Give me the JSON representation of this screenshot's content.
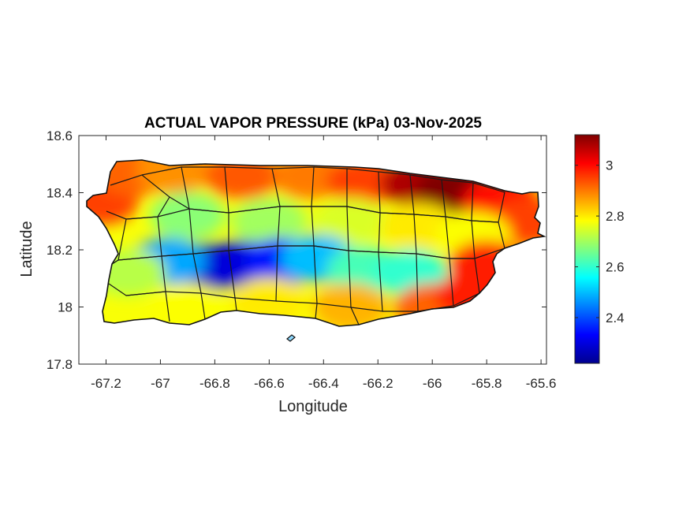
{
  "chart_data": {
    "type": "heatmap",
    "title": "ACTUAL VAPOR PRESSURE (kPa) 03-Nov-2025",
    "xlabel": "Longitude",
    "ylabel": "Latitude",
    "xlim": [
      -67.3,
      -65.58
    ],
    "ylim": [
      17.8,
      18.6
    ],
    "x_ticks": [
      -67.2,
      -67,
      -66.8,
      -66.6,
      -66.4,
      -66.2,
      -66,
      -65.8,
      -65.6
    ],
    "x_tick_labels": [
      "-67.2",
      "-67",
      "-66.8",
      "-66.6",
      "-66.4",
      "-66.2",
      "-66",
      "-65.8",
      "-65.6"
    ],
    "y_ticks": [
      17.8,
      18,
      18.2,
      18.4,
      18.6
    ],
    "y_tick_labels": [
      "17.8",
      "18",
      "18.2",
      "18.4",
      "18.6"
    ],
    "colormap": "jet",
    "colorbar": {
      "min": 2.22,
      "max": 3.12,
      "ticks": [
        2.4,
        2.6,
        2.8,
        3.0
      ],
      "tick_labels": [
        "2.4",
        "2.6",
        "2.8",
        "3"
      ],
      "location": "right"
    },
    "grid": false,
    "field_samples": [
      {
        "lon": -67.22,
        "lat": 18.37,
        "value": 2.95
      },
      {
        "lon": -67.1,
        "lat": 18.47,
        "value": 2.92
      },
      {
        "lon": -66.95,
        "lat": 18.48,
        "value": 2.88
      },
      {
        "lon": -66.7,
        "lat": 18.46,
        "value": 2.93
      },
      {
        "lon": -66.45,
        "lat": 18.46,
        "value": 2.9
      },
      {
        "lon": -66.25,
        "lat": 18.44,
        "value": 2.95
      },
      {
        "lon": -66.05,
        "lat": 18.43,
        "value": 3.08
      },
      {
        "lon": -65.92,
        "lat": 18.41,
        "value": 3.12
      },
      {
        "lon": -65.75,
        "lat": 18.37,
        "value": 3.0
      },
      {
        "lon": -65.65,
        "lat": 18.3,
        "value": 2.95
      },
      {
        "lon": -66.9,
        "lat": 18.32,
        "value": 2.68
      },
      {
        "lon": -66.6,
        "lat": 18.3,
        "value": 2.7
      },
      {
        "lon": -66.3,
        "lat": 18.3,
        "value": 2.75
      },
      {
        "lon": -66.05,
        "lat": 18.28,
        "value": 2.8
      },
      {
        "lon": -65.85,
        "lat": 18.25,
        "value": 2.78
      },
      {
        "lon": -66.82,
        "lat": 18.14,
        "value": 2.27
      },
      {
        "lon": -66.7,
        "lat": 18.15,
        "value": 2.3
      },
      {
        "lon": -66.55,
        "lat": 18.16,
        "value": 2.35
      },
      {
        "lon": -66.42,
        "lat": 18.17,
        "value": 2.5
      },
      {
        "lon": -66.97,
        "lat": 18.16,
        "value": 2.48
      },
      {
        "lon": -67.12,
        "lat": 18.12,
        "value": 2.72
      },
      {
        "lon": -66.25,
        "lat": 18.13,
        "value": 2.62
      },
      {
        "lon": -66.08,
        "lat": 18.12,
        "value": 2.6
      },
      {
        "lon": -65.8,
        "lat": 18.15,
        "value": 2.98
      },
      {
        "lon": -66.9,
        "lat": 18.0,
        "value": 2.78
      },
      {
        "lon": -66.6,
        "lat": 18.02,
        "value": 2.8
      },
      {
        "lon": -66.3,
        "lat": 18.0,
        "value": 2.85
      },
      {
        "lon": -66.0,
        "lat": 18.0,
        "value": 2.92
      },
      {
        "lon": -65.85,
        "lat": 18.04,
        "value": 2.98
      }
    ]
  }
}
